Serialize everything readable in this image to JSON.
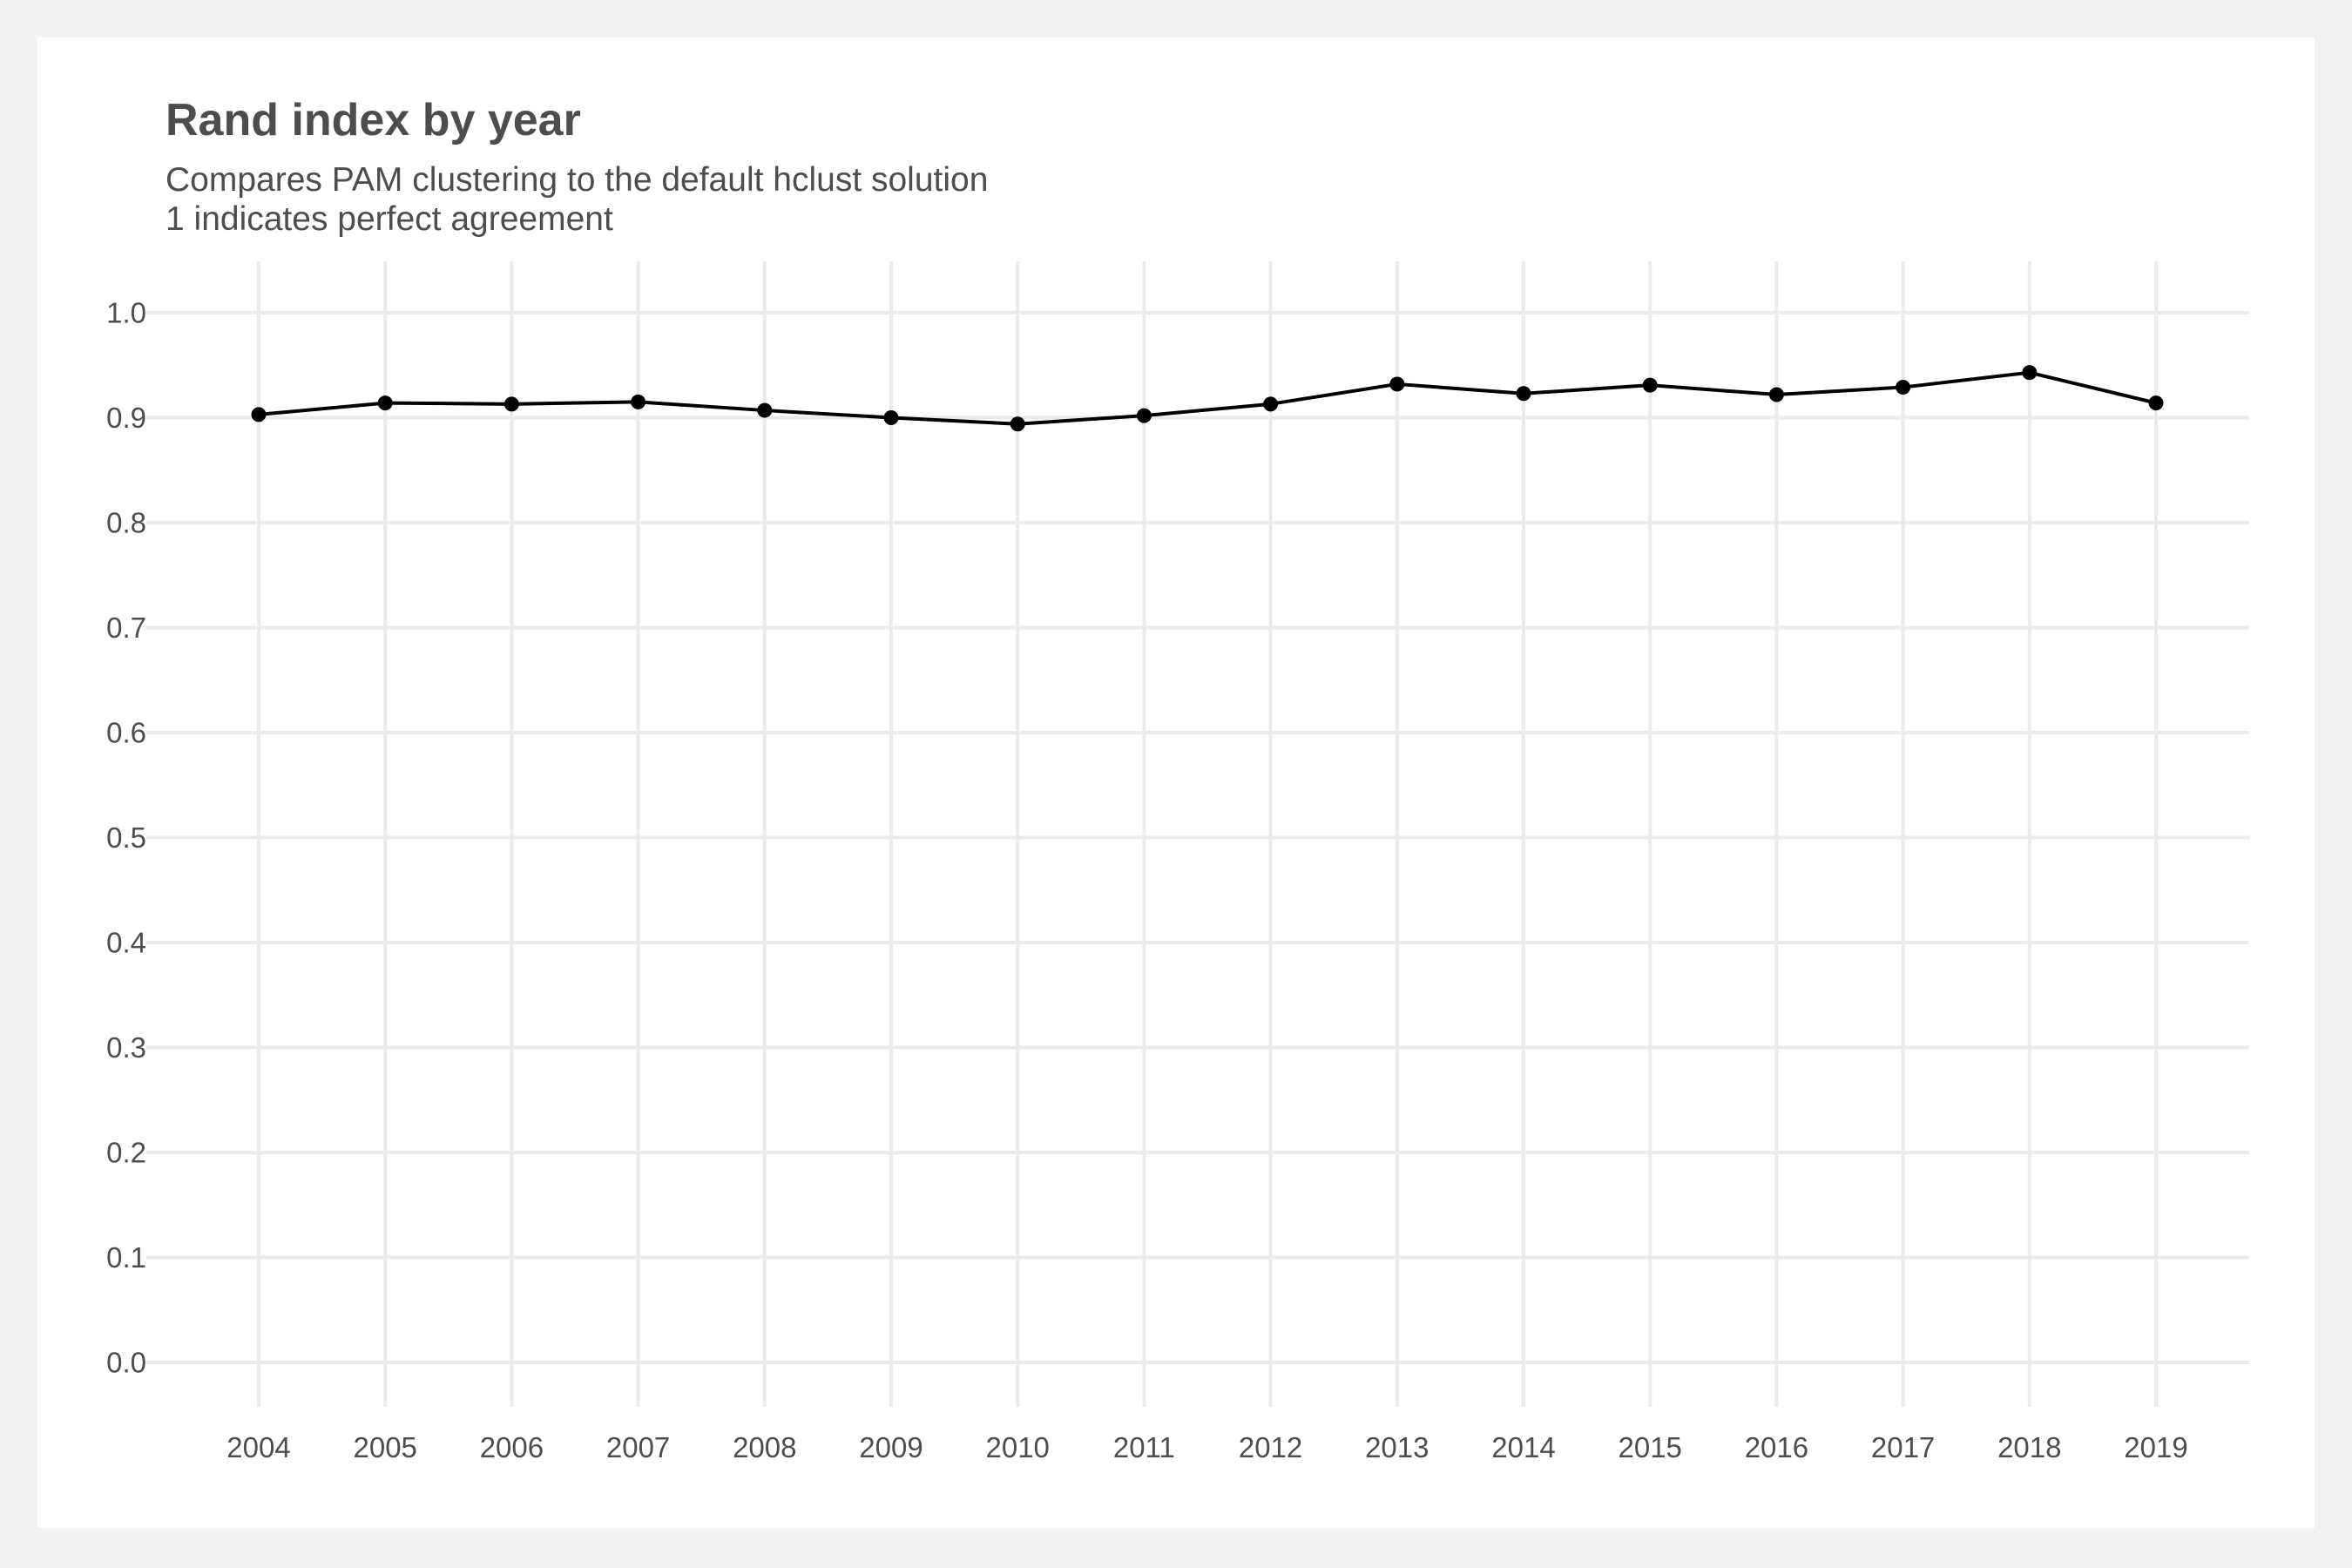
{
  "chart_data": {
    "type": "line",
    "title": "Rand index by year",
    "subtitle": [
      "Compares PAM clustering to the default hclust solution",
      "1 indicates perfect agreement"
    ],
    "xlabel": "",
    "ylabel": "",
    "x": [
      2004,
      2005,
      2006,
      2007,
      2008,
      2009,
      2010,
      2011,
      2012,
      2013,
      2014,
      2015,
      2016,
      2017,
      2018,
      2019
    ],
    "series": [
      {
        "values": [
          0.903,
          0.914,
          0.913,
          0.915,
          0.907,
          0.9,
          0.894,
          0.902,
          0.913,
          0.932,
          0.923,
          0.931,
          0.922,
          0.929,
          0.943,
          0.914
        ],
        "color": "#000000"
      }
    ],
    "ylim": [
      0,
      1
    ],
    "yticks": [
      "0.0",
      "0.1",
      "0.2",
      "0.3",
      "0.4",
      "0.5",
      "0.6",
      "0.7",
      "0.8",
      "0.9",
      "1.0"
    ],
    "grid": true,
    "legend": "none"
  },
  "colors": {
    "background": "#f2f2f2",
    "panel": "#ffffff",
    "grid": "#ebebeb",
    "text": "#4d4d4d",
    "line": "#000000"
  }
}
